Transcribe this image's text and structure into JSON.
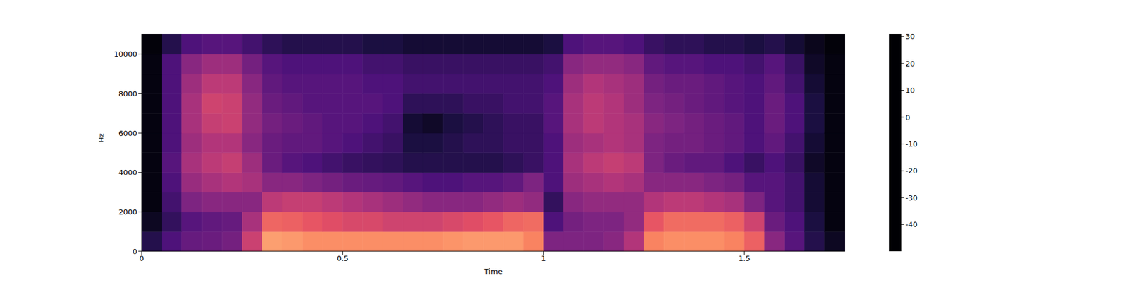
{
  "chart_data": {
    "type": "heatmap",
    "x_label": "Time",
    "y_label": "Hz",
    "xlim": [
      0,
      1.75
    ],
    "ylim": [
      0,
      11025
    ],
    "xticks": [
      0,
      0.5,
      1,
      1.5
    ],
    "yticks": [
      0,
      2000,
      4000,
      6000,
      8000,
      10000
    ],
    "time_bins": [
      0,
      0.05,
      0.1,
      0.15,
      0.2,
      0.25,
      0.3,
      0.35,
      0.4,
      0.45,
      0.5,
      0.55,
      0.6,
      0.65,
      0.7,
      0.75,
      0.8,
      0.85,
      0.9,
      0.95,
      1,
      1.05,
      1.1,
      1.15,
      1.2,
      1.25,
      1.3,
      1.35,
      1.4,
      1.45,
      1.5,
      1.55,
      1.6,
      1.65,
      1.7,
      1.75
    ],
    "freq_bins": [
      0,
      1000,
      2000,
      3000,
      4000,
      5000,
      6000,
      7000,
      8000,
      9000,
      10000,
      11025
    ],
    "cells": [
      [
        -38,
        -45,
        -48,
        -48,
        -48,
        -48,
        -48,
        -48,
        -48,
        -48,
        -49
      ],
      [
        -30,
        -35,
        -32,
        -30,
        -28,
        -30,
        -30,
        -30,
        -30,
        -30,
        -38
      ],
      [
        -25,
        -28,
        -20,
        -15,
        -12,
        -14,
        -12,
        -12,
        -14,
        -18,
        -30
      ],
      [
        -24,
        -26,
        -18,
        -12,
        -8,
        -10,
        -6,
        -4,
        -8,
        -14,
        -28
      ],
      [
        -22,
        -25,
        -18,
        -10,
        -6,
        -10,
        -5,
        -5,
        -8,
        -14,
        -28
      ],
      [
        -5,
        -12,
        -18,
        -12,
        -14,
        -18,
        -16,
        -16,
        -18,
        -22,
        -32
      ],
      [
        15,
        5,
        -8,
        -18,
        -24,
        -24,
        -22,
        -24,
        -26,
        -28,
        -36
      ],
      [
        14,
        4,
        -6,
        -18,
        -28,
        -26,
        -24,
        -26,
        -28,
        -30,
        -38
      ],
      [
        12,
        2,
        -6,
        -20,
        -30,
        -26,
        -26,
        -28,
        -28,
        -30,
        -38
      ],
      [
        12,
        0,
        -8,
        -22,
        -32,
        -28,
        -28,
        -28,
        -28,
        -30,
        -38
      ],
      [
        12,
        -2,
        -10,
        -24,
        -34,
        -30,
        -28,
        -28,
        -28,
        -30,
        -38
      ],
      [
        12,
        -2,
        -12,
        -25,
        -35,
        -32,
        -30,
        -28,
        -30,
        -32,
        -40
      ],
      [
        12,
        -4,
        -14,
        -26,
        -36,
        -34,
        -32,
        -30,
        -30,
        -32,
        -40
      ],
      [
        12,
        -4,
        -16,
        -28,
        -38,
        -40,
        -42,
        -36,
        -32,
        -34,
        -42
      ],
      [
        12,
        -4,
        -18,
        -30,
        -38,
        -40,
        -44,
        -36,
        -32,
        -34,
        -42
      ],
      [
        13,
        -2,
        -18,
        -30,
        -38,
        -38,
        -40,
        -36,
        -32,
        -34,
        -42
      ],
      [
        14,
        0,
        -18,
        -28,
        -38,
        -36,
        -38,
        -34,
        -32,
        -34,
        -42
      ],
      [
        14,
        2,
        -16,
        -28,
        -38,
        -36,
        -36,
        -34,
        -32,
        -34,
        -42
      ],
      [
        14,
        5,
        -14,
        -26,
        -36,
        -34,
        -34,
        -32,
        -32,
        -34,
        -42
      ],
      [
        10,
        6,
        -16,
        -20,
        -34,
        -34,
        -34,
        -32,
        -32,
        -34,
        -42
      ],
      [
        -20,
        -30,
        -35,
        -30,
        -30,
        -30,
        -28,
        -28,
        -30,
        -32,
        -40
      ],
      [
        -20,
        -22,
        -18,
        -14,
        -12,
        -14,
        -12,
        -12,
        -14,
        -18,
        -30
      ],
      [
        -20,
        -20,
        -16,
        -12,
        -8,
        -12,
        -8,
        -8,
        -10,
        -16,
        -28
      ],
      [
        -18,
        -20,
        -16,
        -10,
        -6,
        -10,
        -10,
        -10,
        -12,
        -16,
        -28
      ],
      [
        -10,
        -16,
        -16,
        -12,
        -8,
        -12,
        -12,
        -14,
        -14,
        -18,
        -30
      ],
      [
        10,
        2,
        -10,
        -18,
        -20,
        -20,
        -18,
        -20,
        -22,
        -26,
        -34
      ],
      [
        12,
        6,
        -8,
        -18,
        -24,
        -22,
        -20,
        -22,
        -24,
        -28,
        -36
      ],
      [
        12,
        6,
        -8,
        -18,
        -26,
        -22,
        -22,
        -24,
        -24,
        -28,
        -36
      ],
      [
        12,
        6,
        -10,
        -20,
        -26,
        -24,
        -24,
        -26,
        -26,
        -30,
        -38
      ],
      [
        10,
        4,
        -12,
        -22,
        -30,
        -26,
        -26,
        -28,
        -28,
        -30,
        -38
      ],
      [
        4,
        -4,
        -20,
        -28,
        -34,
        -30,
        -30,
        -30,
        -30,
        -32,
        -40
      ],
      [
        -18,
        -24,
        -28,
        -28,
        -30,
        -26,
        -24,
        -24,
        -26,
        -28,
        -38
      ],
      [
        -28,
        -30,
        -32,
        -32,
        -34,
        -32,
        -30,
        -30,
        -32,
        -34,
        -42
      ],
      [
        -38,
        -40,
        -42,
        -42,
        -44,
        -42,
        -40,
        -40,
        -42,
        -44,
        -46
      ],
      [
        -45,
        -48,
        -48,
        -48,
        -48,
        -48,
        -48,
        -48,
        -48,
        -48,
        -49
      ]
    ],
    "colorbar": {
      "range": [
        -50,
        31
      ],
      "ticks": [
        -40,
        -30,
        -20,
        -10,
        0,
        10,
        20,
        30
      ]
    }
  }
}
